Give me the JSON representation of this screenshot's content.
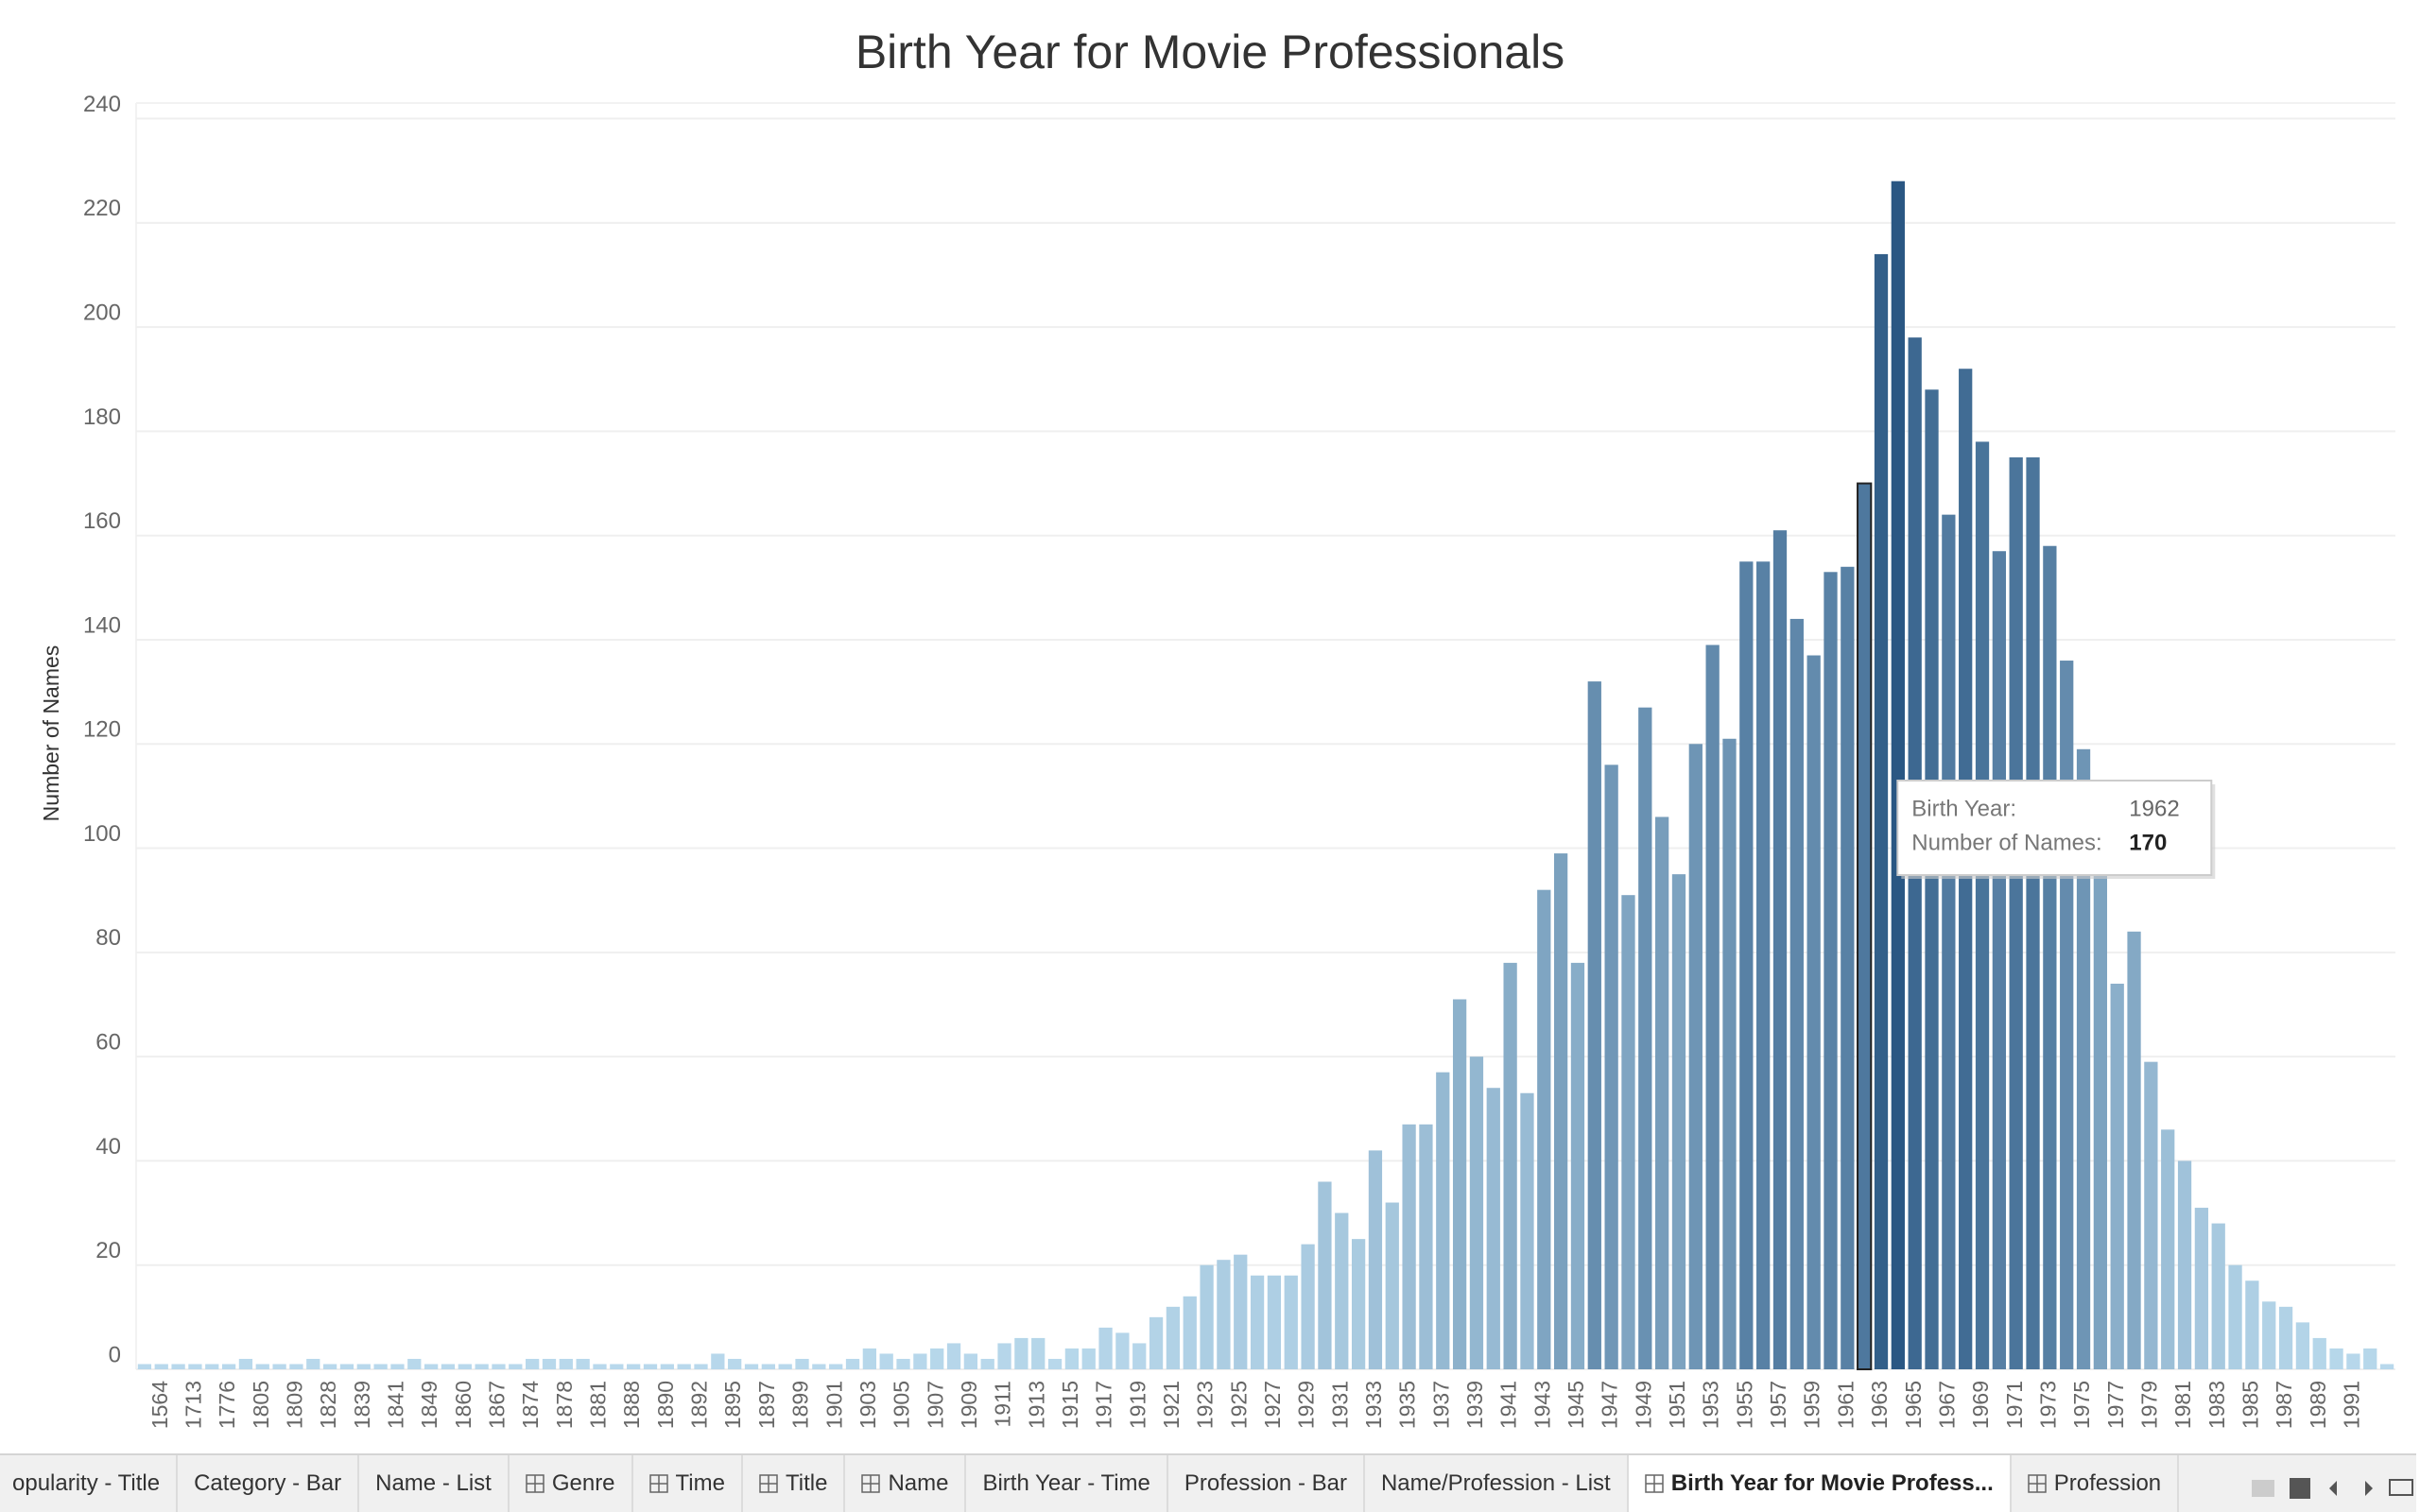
{
  "chart_data": {
    "type": "bar",
    "title": "Birth Year for Movie Professionals",
    "y_label": "Number of Names",
    "categories": [
      null,
      "1564",
      null,
      "1713",
      null,
      "1776",
      null,
      "1805",
      null,
      "1809",
      null,
      "1828",
      null,
      "1839",
      null,
      "1841",
      null,
      "1849",
      null,
      "1860",
      null,
      "1867",
      null,
      "1874",
      null,
      "1878",
      null,
      "1881",
      null,
      "1888",
      null,
      "1890",
      null,
      "1892",
      null,
      "1895",
      null,
      "1897",
      null,
      "1899",
      null,
      "1901",
      null,
      "1903",
      null,
      "1905",
      null,
      "1907",
      null,
      "1909",
      null,
      "1911",
      null,
      "1913",
      null,
      "1915",
      null,
      "1917",
      null,
      "1919",
      null,
      "1921",
      null,
      "1923",
      null,
      "1925",
      null,
      "1927",
      null,
      "1929",
      null,
      "1931",
      null,
      "1933",
      null,
      "1935",
      null,
      "1937",
      null,
      "1939",
      null,
      "1941",
      null,
      "1943",
      null,
      "1945",
      null,
      "1947",
      null,
      "1949",
      null,
      "1951",
      null,
      "1953",
      null,
      "1955",
      null,
      "1957",
      null,
      "1959",
      null,
      "1961",
      null,
      "1963",
      null,
      "1965",
      null,
      "1967",
      null,
      "1969",
      null,
      "1971",
      null,
      "1973",
      null,
      "1975",
      null,
      "1977",
      null,
      "1979",
      null,
      "1981",
      null,
      "1983",
      null,
      "1985",
      null,
      "1987",
      null,
      "1989",
      null,
      "1991",
      null,
      null
    ],
    "values": [
      1,
      1,
      1,
      1,
      1,
      1,
      2,
      1,
      1,
      1,
      2,
      1,
      1,
      1,
      1,
      1,
      2,
      1,
      1,
      1,
      1,
      1,
      1,
      2,
      2,
      2,
      2,
      1,
      1,
      1,
      1,
      1,
      1,
      1,
      3,
      2,
      1,
      1,
      1,
      2,
      1,
      1,
      2,
      4,
      3,
      2,
      3,
      4,
      5,
      3,
      2,
      5,
      6,
      6,
      2,
      4,
      4,
      8,
      7,
      5,
      10,
      12,
      14,
      20,
      21,
      22,
      18,
      18,
      18,
      24,
      36,
      30,
      25,
      42,
      32,
      47,
      47,
      57,
      71,
      60,
      54,
      78,
      53,
      92,
      99,
      78,
      132,
      116,
      91,
      127,
      106,
      95,
      120,
      139,
      121,
      155,
      155,
      161,
      144,
      137,
      153,
      154,
      170,
      214,
      228,
      198,
      188,
      164,
      192,
      178,
      157,
      175,
      175,
      158,
      136,
      119,
      95,
      74,
      84,
      59,
      46,
      40,
      31,
      28,
      20,
      17,
      13,
      12,
      9,
      6,
      4,
      3,
      4,
      1
    ],
    "color_scale": [
      "#b9d9ec",
      "#2a5783"
    ],
    "ylim": [
      0,
      243
    ],
    "yticks": [
      0,
      20,
      40,
      60,
      80,
      100,
      120,
      140,
      160,
      180,
      200,
      220,
      240
    ],
    "grid": true,
    "tooltip": {
      "rows": [
        {
          "label": "Birth Year:",
          "value": "1962"
        },
        {
          "label": "Number of Names:",
          "value": 170
        }
      ]
    }
  },
  "tabs": [
    {
      "label": "opularity - Title",
      "grid": false
    },
    {
      "label": "Category - Bar",
      "grid": false
    },
    {
      "label": "Name - List",
      "grid": false
    },
    {
      "label": "Genre",
      "grid": true
    },
    {
      "label": "Time",
      "grid": true
    },
    {
      "label": "Title",
      "grid": true
    },
    {
      "label": "Name",
      "grid": true
    },
    {
      "label": "Birth Year - Time",
      "grid": false
    },
    {
      "label": "Profession - Bar",
      "grid": false
    },
    {
      "label": "Name/Profession - List",
      "grid": false
    },
    {
      "label": "Birth Year for Movie Profess...",
      "grid": true,
      "active": true
    },
    {
      "label": "Profession",
      "grid": true
    }
  ]
}
